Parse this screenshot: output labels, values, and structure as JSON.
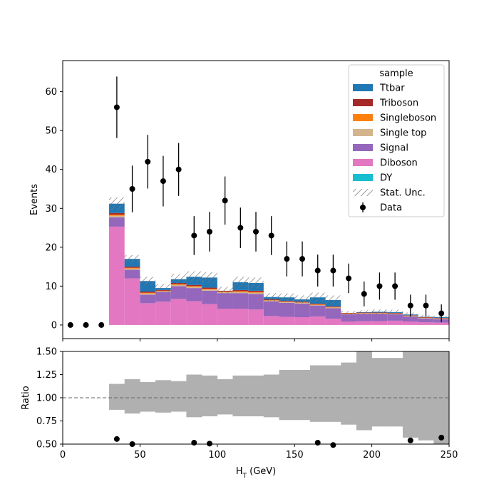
{
  "chart_data": {
    "type": "bar",
    "stacked": true,
    "x_bin_edges": [
      0,
      10,
      20,
      30,
      40,
      50,
      60,
      70,
      80,
      90,
      100,
      110,
      120,
      130,
      140,
      150,
      160,
      170,
      180,
      190,
      200,
      210,
      220,
      230,
      240,
      250
    ],
    "xlabel": "H",
    "xlabel_sub": "T",
    "xlabel_unit": " (GeV)",
    "xlim": [
      0,
      250
    ],
    "top_panel": {
      "ylabel": "Events",
      "ylim": [
        -3.5,
        68
      ],
      "yticks": [
        0,
        10,
        20,
        30,
        40,
        50,
        60
      ],
      "series": [
        {
          "name": "Diboson",
          "color": "#e377c2",
          "values": [
            0,
            0,
            0,
            25.3,
            12.0,
            5.6,
            6.0,
            6.7,
            6.1,
            5.4,
            4.2,
            4.2,
            4.0,
            2.3,
            2.1,
            2.0,
            2.2,
            1.6,
            0.9,
            1.0,
            1.0,
            1.1,
            0.9,
            0.7,
            0.6
          ]
        },
        {
          "name": "Signal",
          "color": "#9467bd",
          "values": [
            0,
            0,
            0,
            2.4,
            2.2,
            2.2,
            2.5,
            3.3,
            3.4,
            3.4,
            4.0,
            4.0,
            4.0,
            3.8,
            3.6,
            3.5,
            2.8,
            2.7,
            1.9,
            1.9,
            1.9,
            1.7,
            1.3,
            1.0,
            0.9
          ]
        },
        {
          "name": "Single top",
          "color": "#d4b48c",
          "values": [
            0,
            0,
            0,
            0.4,
            0.3,
            0.3,
            0.2,
            0.3,
            0.3,
            0.3,
            0.3,
            0.3,
            0.3,
            0.2,
            0.2,
            0.2,
            0.2,
            0.2,
            0.1,
            0.1,
            0.1,
            0.1,
            0.1,
            0.1,
            0.1
          ]
        },
        {
          "name": "Singleboson",
          "color": "#ff7f0e",
          "values": [
            0,
            0,
            0,
            0.3,
            0.2,
            0.2,
            0.1,
            0.2,
            0.2,
            0.2,
            0.1,
            0.2,
            0.2,
            0.1,
            0.1,
            0.1,
            0.1,
            0.1,
            0.1,
            0.1,
            0.1,
            0.1,
            0.1,
            0.1,
            0.1
          ]
        },
        {
          "name": "Triboson",
          "color": "#a62929",
          "values": [
            0,
            0,
            0,
            0.4,
            0.3,
            0.3,
            0.2,
            0.3,
            0.3,
            0.3,
            0.2,
            0.3,
            0.3,
            0.2,
            0.2,
            0.2,
            0.2,
            0.2,
            0.1,
            0.1,
            0.1,
            0.1,
            0.1,
            0.1,
            0.1
          ]
        },
        {
          "name": "Ttbar",
          "color": "#1f77b4",
          "values": [
            0,
            0,
            0,
            2.4,
            2.0,
            2.7,
            0.5,
            1.0,
            2.1,
            2.6,
            0.0,
            2.0,
            2.0,
            0.6,
            0.9,
            0.6,
            1.6,
            1.6,
            0.0,
            0.1,
            0.2,
            0.2,
            0.2,
            0.1,
            0.2
          ]
        },
        {
          "name": "DY",
          "color": "#17becf",
          "values": [
            0,
            0,
            0,
            0,
            0,
            0,
            0,
            0,
            0,
            0,
            0,
            0,
            0,
            0,
            0,
            0,
            0,
            0,
            0,
            0,
            0,
            0,
            0,
            0,
            0
          ]
        }
      ],
      "stat_unc": [
        0,
        0,
        0,
        1.6,
        1.0,
        1.1,
        1.0,
        1.3,
        1.4,
        1.4,
        1.0,
        1.4,
        1.4,
        1.0,
        1.0,
        1.0,
        1.2,
        1.2,
        0.5,
        0.5,
        0.6,
        0.6,
        0.5,
        0.4,
        0.4
      ],
      "data": {
        "x": [
          5,
          15,
          25,
          35,
          45,
          55,
          65,
          75,
          85,
          95,
          105,
          115,
          125,
          135,
          145,
          155,
          165,
          175,
          185,
          195,
          205,
          215,
          225,
          235,
          245
        ],
        "y": [
          0,
          0,
          0,
          56,
          35,
          42,
          37,
          40,
          23,
          24,
          32,
          25,
          24,
          23,
          17,
          17,
          14,
          14,
          12,
          8,
          10,
          10,
          5,
          5,
          3
        ],
        "yerr": [
          0,
          0,
          0,
          7.9,
          6.0,
          6.9,
          6.5,
          6.8,
          5.0,
          5.1,
          6.2,
          5.2,
          5.1,
          5.0,
          4.5,
          4.5,
          4.1,
          4.1,
          3.8,
          3.2,
          3.5,
          3.5,
          2.8,
          2.8,
          2.3
        ]
      },
      "legend": {
        "title": "sample",
        "placement": "top-right",
        "entries": [
          "Ttbar",
          "Triboson",
          "Singleboson",
          "Single top",
          "Signal",
          "Diboson",
          "DY",
          "Stat. Unc.",
          "Data"
        ]
      }
    },
    "bottom_panel": {
      "ylabel": "Ratio",
      "ylim": [
        0.5,
        1.5
      ],
      "yticks": [
        0.5,
        0.75,
        1.0,
        1.25,
        1.5
      ],
      "ytick_labels": [
        "0.50",
        "0.75",
        "1.00",
        "1.25",
        "1.50"
      ],
      "reference_line": 1.0,
      "band_color": "#b0b0b0",
      "band_low": [
        null,
        null,
        null,
        0.87,
        0.83,
        0.85,
        0.84,
        0.85,
        0.79,
        0.8,
        0.82,
        0.8,
        0.8,
        0.79,
        0.76,
        0.76,
        0.74,
        0.74,
        0.71,
        0.65,
        0.69,
        0.69,
        0.57,
        0.54,
        0.5
      ],
      "band_high": [
        null,
        null,
        null,
        1.15,
        1.2,
        1.17,
        1.19,
        1.18,
        1.25,
        1.24,
        1.2,
        1.24,
        1.24,
        1.25,
        1.3,
        1.3,
        1.35,
        1.35,
        1.38,
        1.5,
        1.43,
        1.43,
        1.5,
        1.5,
        1.5
      ],
      "points": {
        "x": [
          35,
          45,
          85,
          95,
          165,
          175,
          225,
          245
        ],
        "y": [
          0.555,
          0.5,
          0.515,
          0.505,
          0.515,
          0.49,
          0.54,
          0.57
        ]
      }
    },
    "xticks": [
      0,
      50,
      100,
      150,
      200,
      250
    ]
  }
}
